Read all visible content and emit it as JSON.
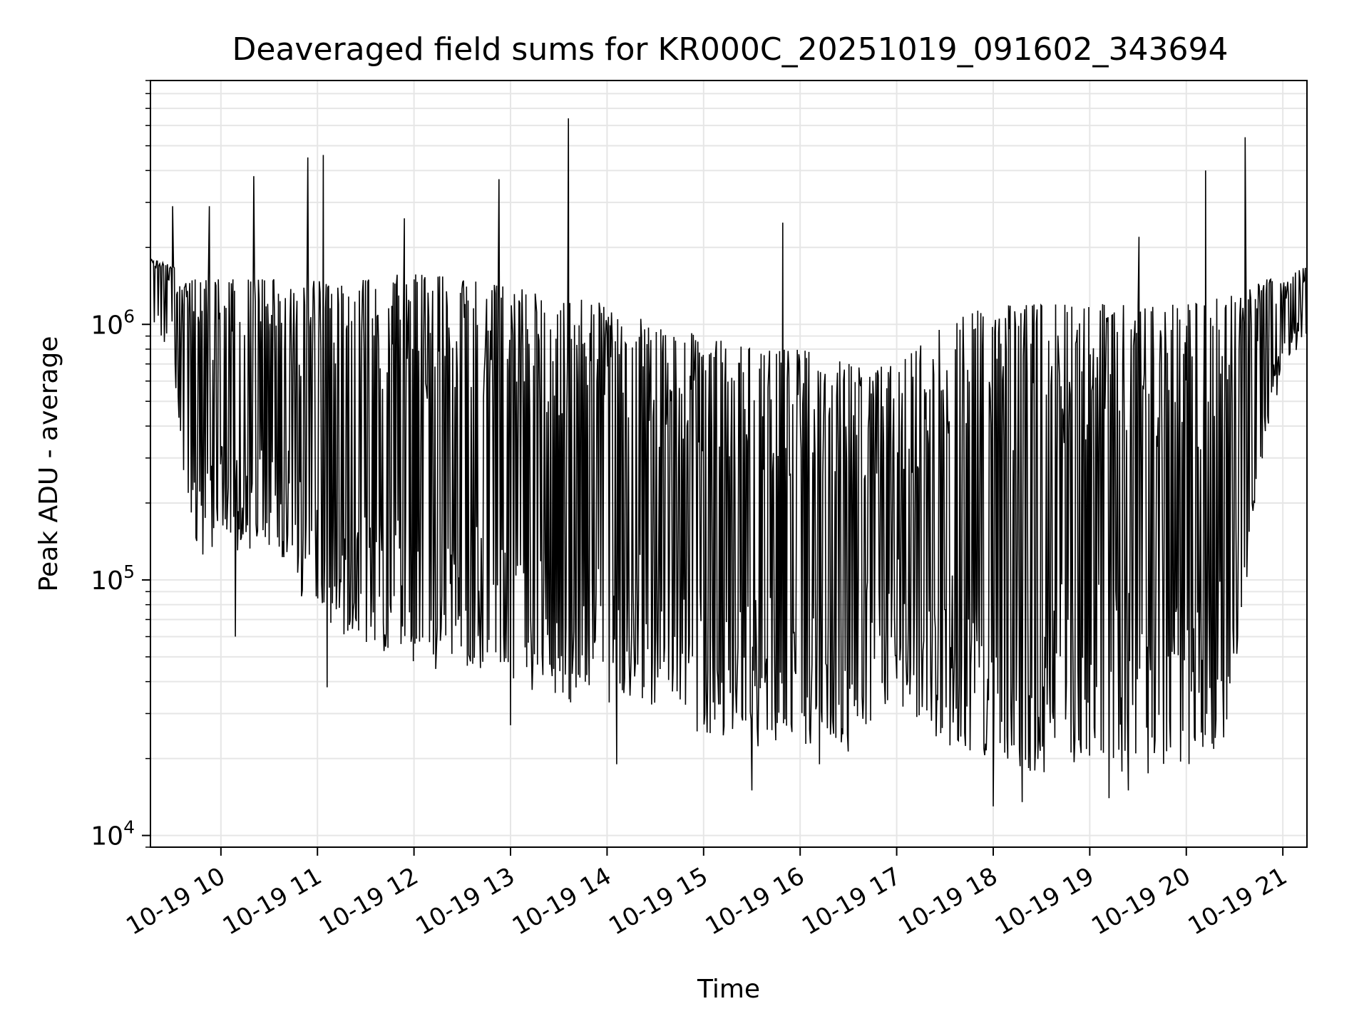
{
  "chart_data": {
    "type": "line",
    "title": "Deaveraged field sums for KR000C_20251019_091602_343694",
    "xlabel": "Time",
    "ylabel": "Peak ADU - average",
    "yscale": "log",
    "xlim": [
      9.27,
      21.25
    ],
    "ylim": [
      9000,
      9000000
    ],
    "grid": true,
    "x_ticks": [
      {
        "value": 10,
        "label": "10-19 10"
      },
      {
        "value": 11,
        "label": "10-19 11"
      },
      {
        "value": 12,
        "label": "10-19 12"
      },
      {
        "value": 13,
        "label": "10-19 13"
      },
      {
        "value": 14,
        "label": "10-19 14"
      },
      {
        "value": 15,
        "label": "10-19 15"
      },
      {
        "value": 16,
        "label": "10-19 16"
      },
      {
        "value": 17,
        "label": "10-19 17"
      },
      {
        "value": 18,
        "label": "10-19 18"
      },
      {
        "value": 19,
        "label": "10-19 19"
      },
      {
        "value": 20,
        "label": "10-19 20"
      },
      {
        "value": 21,
        "label": "10-19 21"
      }
    ],
    "y_ticks": [
      {
        "value": 10000,
        "base": "10",
        "exp": "4"
      },
      {
        "value": 100000,
        "base": "10",
        "exp": "5"
      },
      {
        "value": 1000000,
        "base": "10",
        "exp": "6"
      }
    ],
    "series": [
      {
        "name": "deaveraged field sum",
        "color": "#000000",
        "upper_envelope": {
          "x": [
            9.27,
            9.5,
            9.6,
            10.0,
            10.5,
            11.0,
            11.5,
            12.0,
            12.5,
            13.0,
            13.5,
            14.0,
            14.5,
            15.0,
            15.5,
            16.0,
            16.5,
            17.0,
            17.5,
            18.0,
            18.5,
            19.0,
            19.5,
            20.0,
            20.5,
            20.8,
            21.0,
            21.25
          ],
          "y": [
            1800000,
            1700000,
            1500000,
            1500000,
            1500000,
            1500000,
            1500000,
            1600000,
            1500000,
            1400000,
            1300000,
            1200000,
            1000000,
            900000,
            800000,
            800000,
            700000,
            700000,
            1000000,
            1200000,
            1200000,
            1200000,
            1200000,
            1200000,
            1300000,
            1500000,
            1500000,
            1700000
          ]
        },
        "lower_envelope": {
          "x": [
            9.27,
            9.5,
            9.6,
            9.8,
            10.0,
            10.5,
            11.0,
            11.5,
            12.0,
            12.5,
            13.0,
            13.5,
            14.0,
            14.5,
            15.0,
            15.5,
            16.0,
            16.5,
            17.0,
            17.2,
            17.5,
            18.0,
            18.5,
            19.0,
            19.5,
            20.0,
            20.4,
            20.6,
            20.8,
            21.0,
            21.25
          ],
          "y": [
            1400000,
            900000,
            250000,
            140000,
            170000,
            170000,
            90000,
            65000,
            60000,
            55000,
            50000,
            45000,
            40000,
            38000,
            30000,
            28000,
            28000,
            26000,
            45000,
            32000,
            28000,
            24000,
            22000,
            22000,
            22000,
            24000,
            30000,
            100000,
            400000,
            800000,
            1200000
          ]
        },
        "spikes": [
          {
            "x": 9.5,
            "y": 2900000
          },
          {
            "x": 9.88,
            "y": 2900000
          },
          {
            "x": 10.34,
            "y": 3800000
          },
          {
            "x": 10.9,
            "y": 4500000
          },
          {
            "x": 11.06,
            "y": 4600000
          },
          {
            "x": 11.9,
            "y": 2600000
          },
          {
            "x": 12.88,
            "y": 3700000
          },
          {
            "x": 13.6,
            "y": 6400000
          },
          {
            "x": 15.82,
            "y": 2500000
          },
          {
            "x": 19.51,
            "y": 2200000
          },
          {
            "x": 20.2,
            "y": 4000000
          },
          {
            "x": 20.61,
            "y": 5400000
          }
        ],
        "dips": [
          {
            "x": 10.15,
            "y": 60000
          },
          {
            "x": 11.1,
            "y": 38000
          },
          {
            "x": 13.0,
            "y": 27000
          },
          {
            "x": 14.1,
            "y": 19000
          },
          {
            "x": 15.5,
            "y": 15000
          },
          {
            "x": 16.2,
            "y": 19000
          },
          {
            "x": 18.0,
            "y": 13000
          },
          {
            "x": 18.3,
            "y": 13500
          },
          {
            "x": 19.2,
            "y": 14000
          },
          {
            "x": 19.4,
            "y": 15000
          }
        ]
      }
    ]
  }
}
